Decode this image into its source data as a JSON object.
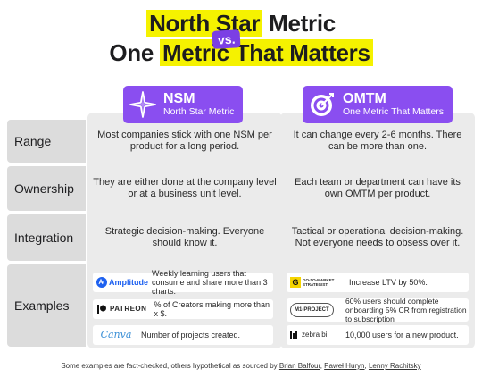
{
  "title": {
    "line1_highlight": "North Star",
    "line1_rest": " Metric",
    "vs": "vs.",
    "line2_lead": "One ",
    "line2_highlight": "Metric That Matters"
  },
  "columns": {
    "nsm": {
      "abbr": "NSM",
      "name": "North Star Metric",
      "icon": "star-icon"
    },
    "omtm": {
      "abbr": "OMTM",
      "name": "One Metric That Matters",
      "icon": "target-icon"
    }
  },
  "rows": {
    "range": {
      "label": "Range",
      "nsm": "Most companies stick with one NSM per product for a long period.",
      "omtm": "It can change every 2-6 months. There can be more than one."
    },
    "ownership": {
      "label": "Ownership",
      "nsm": "They are either done at the company level or at a business unit level.",
      "omtm": "Each team or department can have its own OMTM per product."
    },
    "integration": {
      "label": "Integration",
      "nsm": "Strategic decision-making. Everyone should know it.",
      "omtm": "Tactical or operational decision-making. Not everyone needs to obsess over it."
    },
    "examples": {
      "label": "Examples",
      "nsm": [
        {
          "logo": "Amplitude",
          "text": "Weekly learning users that consume and share more than 3 charts."
        },
        {
          "logo": "PATREON",
          "text": "% of Creators making more than x $."
        },
        {
          "logo": "Canva",
          "text": "Number of projects created."
        }
      ],
      "omtm": [
        {
          "logo_mark": "G",
          "logo": "GO-TO-MARKET STRATEGIST",
          "text": "Increase LTV by 50%."
        },
        {
          "logo": "M1-PROJECT",
          "text": "60% users should complete onboarding 5% CR from registration to subscription"
        },
        {
          "logo": "zebra bi",
          "text": "10,000 users for a new product."
        }
      ]
    }
  },
  "footer": {
    "prefix": "Some examples are fact-checked, others hypothetical as sourced by ",
    "source1": "Brian Balfour",
    "sep1": ", ",
    "source2": "Paweł Huryn",
    "sep2": ", ",
    "source3": "Lenny Rachitsky"
  },
  "colors": {
    "accent": "#8a4ef0",
    "highlight": "#f5f200",
    "label_bg": "#dcdcdc",
    "column_bg": "#ebebeb"
  }
}
